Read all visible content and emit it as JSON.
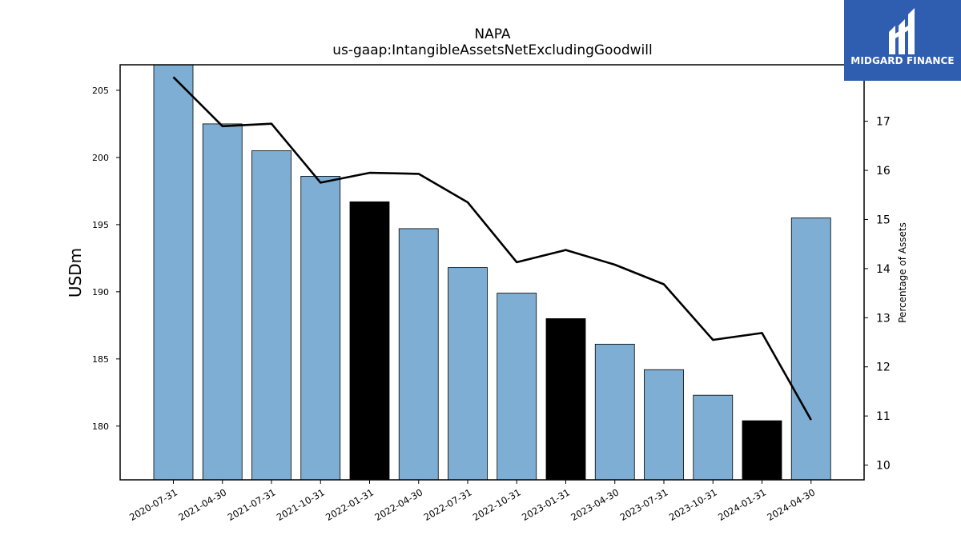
{
  "chart_data": {
    "type": "bar+line",
    "title": "NAPA",
    "subtitle": "us-gaap:IntangibleAssetsNetExcludingGoodwill",
    "ylabel": "USDm",
    "y2label": "Percentage of Assets",
    "categories": [
      "2020-07-31",
      "2021-04-30",
      "2021-07-31",
      "2021-10-31",
      "2022-01-31",
      "2022-04-30",
      "2022-07-31",
      "2022-10-31",
      "2023-01-31",
      "2023-04-30",
      "2023-07-31",
      "2023-10-31",
      "2024-01-31",
      "2024-04-30"
    ],
    "bars": {
      "values": [
        207.0,
        202.5,
        200.5,
        198.6,
        196.7,
        194.7,
        191.8,
        189.9,
        188.0,
        186.1,
        184.2,
        182.3,
        180.4,
        195.5
      ],
      "highlight": [
        false,
        false,
        false,
        false,
        true,
        false,
        false,
        false,
        true,
        false,
        false,
        false,
        true,
        false
      ],
      "color": "#7eaed3",
      "highlight_color": "#000000"
    },
    "line": {
      "values": [
        17.9,
        16.9,
        16.95,
        15.75,
        15.95,
        15.93,
        15.35,
        14.13,
        14.38,
        14.08,
        13.68,
        12.55,
        12.69,
        10.92
      ],
      "color": "#000000"
    },
    "ylim": [
      176,
      206.9
    ],
    "y2lim": [
      9.7,
      18.15
    ],
    "yticks": [
      180,
      185,
      190,
      195,
      200,
      205
    ],
    "y2ticks": [
      10,
      11,
      12,
      13,
      14,
      15,
      16,
      17
    ],
    "grid": false
  },
  "logo": {
    "text": "MIDGARD FINANCE",
    "background": "#2f5daf"
  }
}
